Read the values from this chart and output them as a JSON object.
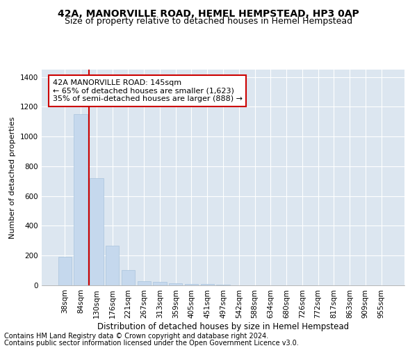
{
  "title1": "42A, MANORVILLE ROAD, HEMEL HEMPSTEAD, HP3 0AP",
  "title2": "Size of property relative to detached houses in Hemel Hempstead",
  "xlabel": "Distribution of detached houses by size in Hemel Hempstead",
  "ylabel": "Number of detached properties",
  "categories": [
    "38sqm",
    "84sqm",
    "130sqm",
    "176sqm",
    "221sqm",
    "267sqm",
    "313sqm",
    "359sqm",
    "405sqm",
    "451sqm",
    "497sqm",
    "542sqm",
    "588sqm",
    "634sqm",
    "680sqm",
    "726sqm",
    "772sqm",
    "817sqm",
    "863sqm",
    "909sqm",
    "955sqm"
  ],
  "values": [
    190,
    1150,
    720,
    265,
    105,
    30,
    25,
    15,
    10,
    10,
    5,
    2,
    2,
    1,
    1,
    0,
    0,
    0,
    0,
    0,
    0
  ],
  "bar_color": "#c5d8ed",
  "bar_edge_color": "#a8c4dc",
  "red_line_x": 1.5,
  "annotation_text": "42A MANORVILLE ROAD: 145sqm\n← 65% of detached houses are smaller (1,623)\n35% of semi-detached houses are larger (888) →",
  "annotation_box_color": "#ffffff",
  "annotation_box_edge": "#cc0000",
  "red_line_color": "#cc0000",
  "ylim": [
    0,
    1450
  ],
  "yticks": [
    0,
    200,
    400,
    600,
    800,
    1000,
    1200,
    1400
  ],
  "background_color": "#dce6f0",
  "footer_line1": "Contains HM Land Registry data © Crown copyright and database right 2024.",
  "footer_line2": "Contains public sector information licensed under the Open Government Licence v3.0.",
  "title1_fontsize": 10,
  "title2_fontsize": 9,
  "xlabel_fontsize": 8.5,
  "ylabel_fontsize": 8,
  "tick_fontsize": 7.5,
  "annotation_fontsize": 8,
  "footer_fontsize": 7
}
